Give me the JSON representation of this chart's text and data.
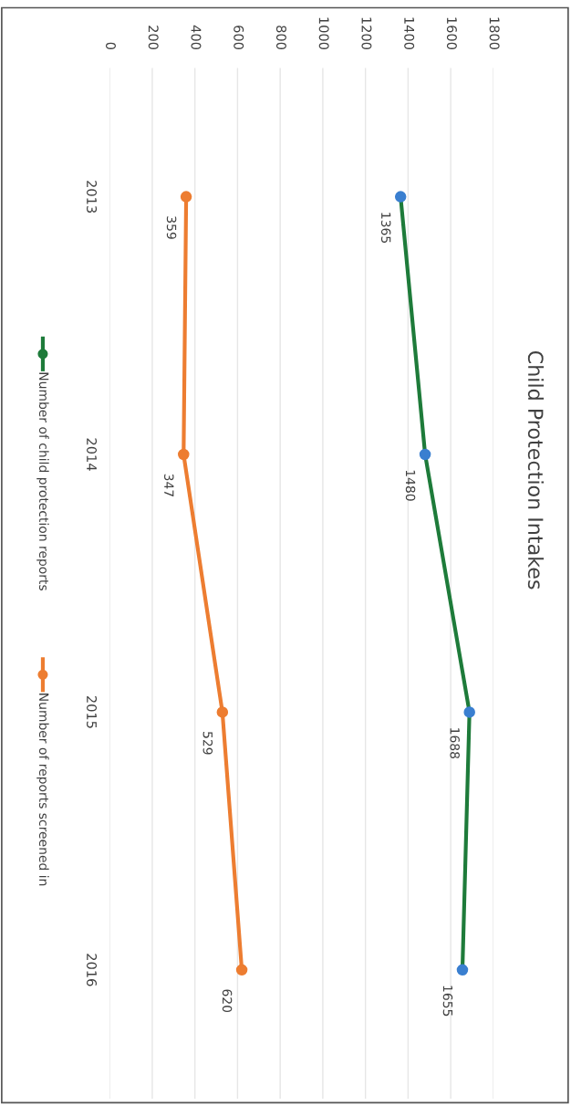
{
  "chart_data": {
    "type": "line",
    "title": "Child Protection Intakes",
    "orientation": "horizontal",
    "categories": [
      "2013",
      "2014",
      "2015",
      "2016"
    ],
    "series": [
      {
        "name": "Number of child protection reports",
        "color": "#1e7b3a",
        "colors": [
          "#3a7fd0",
          "#3a7fd0",
          "#3a7fd0",
          "#3a7fd0"
        ],
        "values": [
          1365,
          1480,
          1688,
          1655
        ]
      },
      {
        "name": "Number of reports screened in",
        "color": "#ed7d31",
        "values": [
          359,
          347,
          529,
          620
        ]
      }
    ],
    "xlim": [
      0,
      1800
    ],
    "xticks": [
      0,
      200,
      400,
      600,
      800,
      1000,
      1200,
      1400,
      1600,
      1800
    ],
    "grid": "x",
    "legend": "bottom",
    "marker": "circle",
    "data_labels": true
  }
}
